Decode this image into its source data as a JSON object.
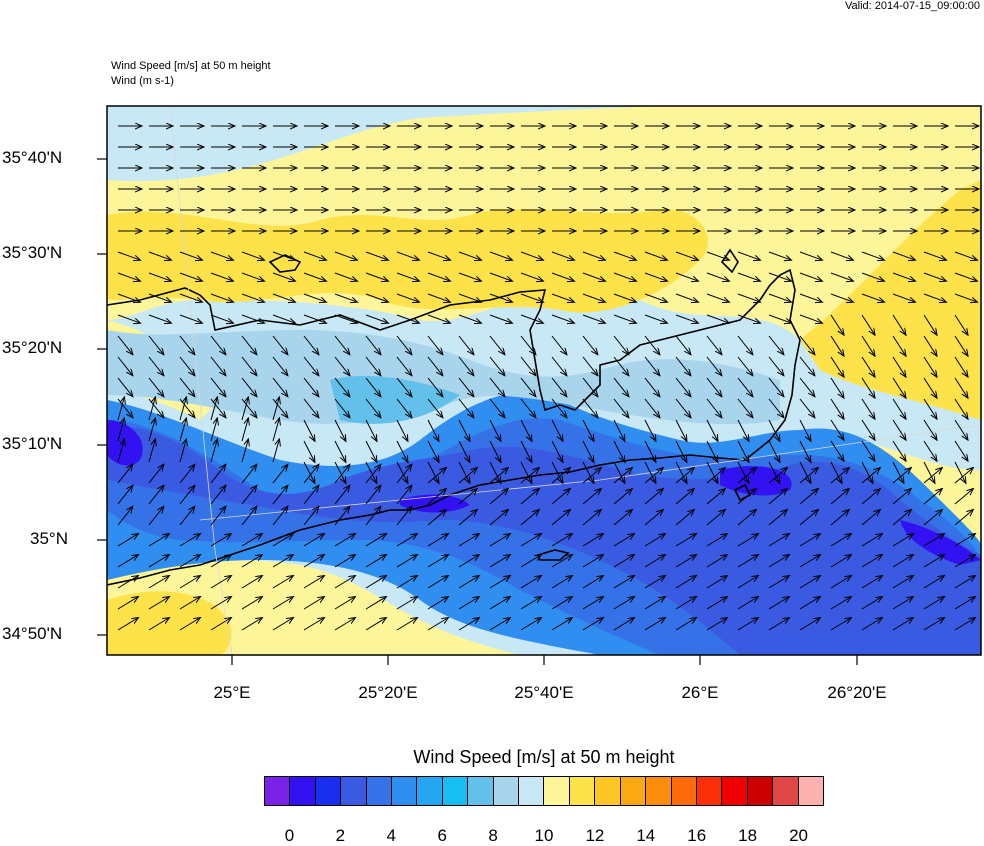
{
  "valid_label": "Valid: 2014-07-15_09:00:00",
  "title_line1": "Wind Speed [m/s] at 50 m height",
  "title_line2": "Wind   (m s-1)",
  "lat_labels": [
    "35°40'N",
    "35°30'N",
    "35°20'N",
    "35°10'N",
    "35°N",
    "34°50'N"
  ],
  "lon_labels": [
    "25°E",
    "25°20'E",
    "25°40'E",
    "26°E",
    "26°20'E"
  ],
  "colorbar": {
    "title": "Wind Speed [m/s] at 50 m height",
    "tick_labels": [
      "0",
      "2",
      "4",
      "6",
      "8",
      "10",
      "12",
      "14",
      "16",
      "18",
      "20"
    ],
    "colors": [
      "#7a22e8",
      "#3212f2",
      "#1a2ef0",
      "#3a5ae2",
      "#3572e8",
      "#2f8ef0",
      "#25a6f2",
      "#16bef2",
      "#62c0ea",
      "#a8d4ec",
      "#c8e8f6",
      "#fcf59a",
      "#fee24a",
      "#fcc624",
      "#fca812",
      "#fc8e0c",
      "#fc6a0c",
      "#fc3008",
      "#f00000",
      "#cc0000",
      "#e04848",
      "#fcb0b0"
    ]
  },
  "field_colors": {
    "speed_8": "#a8d4ec",
    "speed_10": "#c8e8f6",
    "speed_12": "#fcf59a",
    "speed_13": "#fee24a",
    "speed_4": "#3a5ae2",
    "speed_5": "#3572e8",
    "speed_6": "#2f8ef0",
    "speed_2": "#3212f2"
  }
}
